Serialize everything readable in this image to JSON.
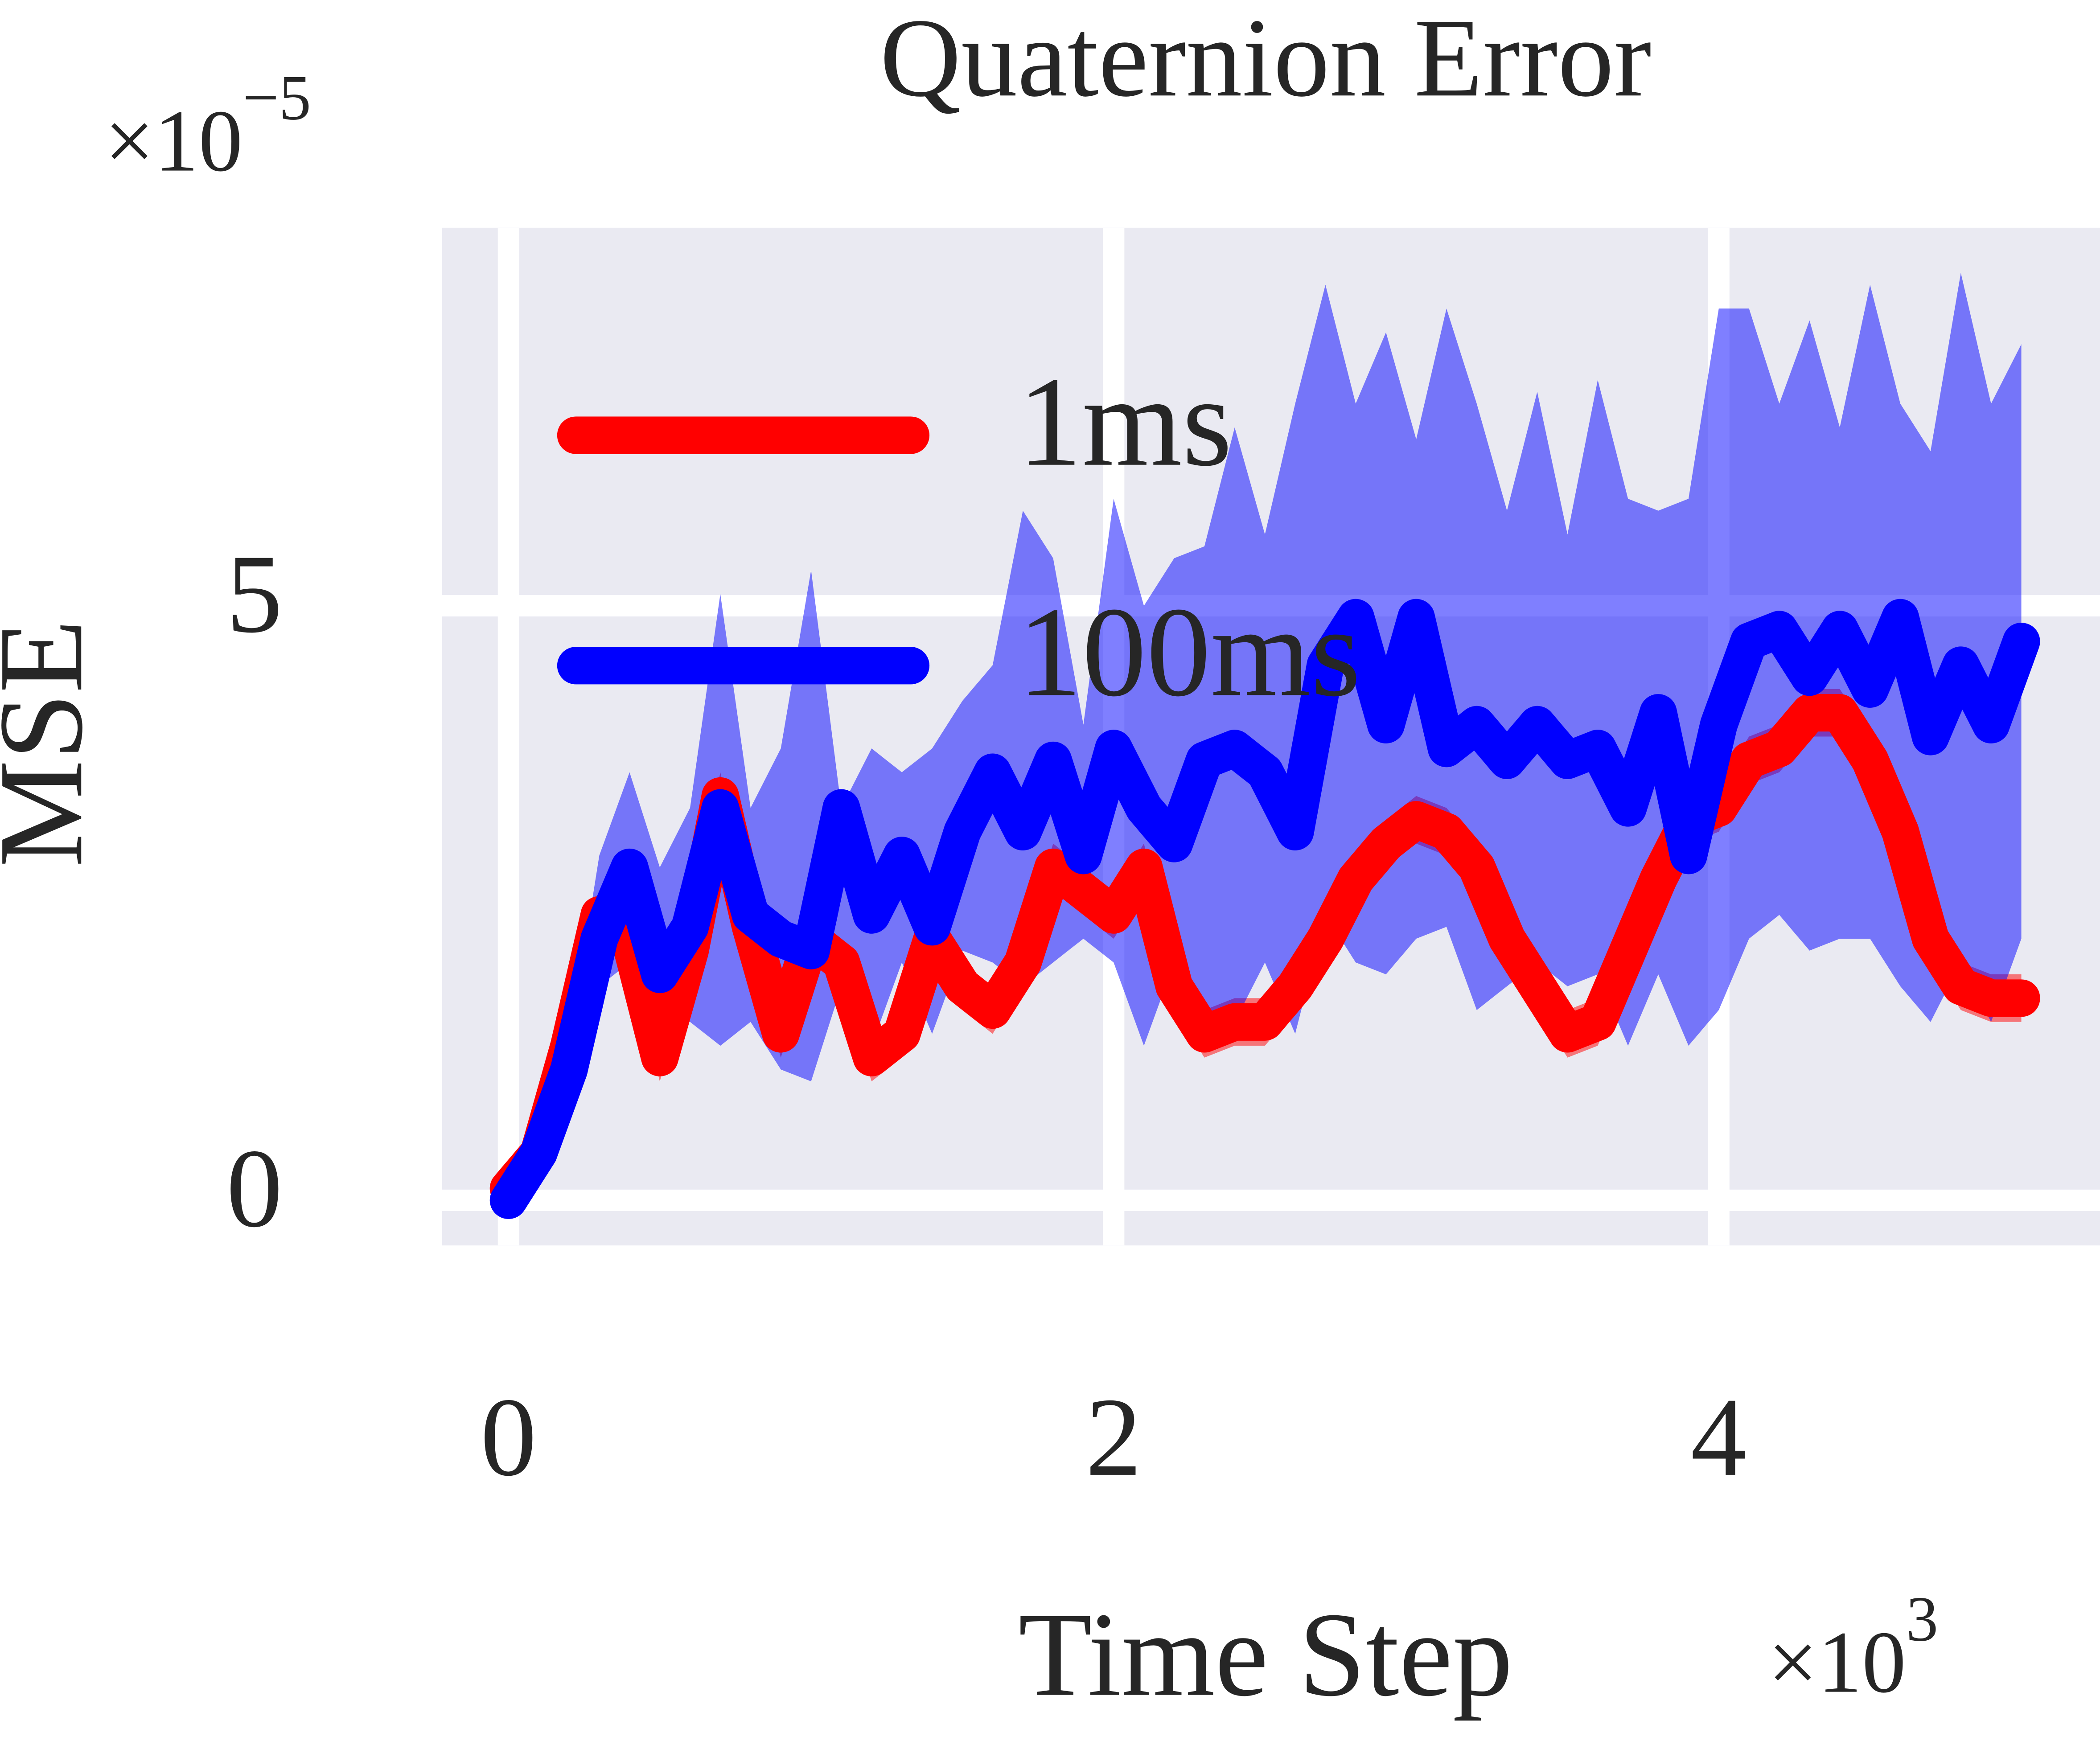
{
  "chart_data": {
    "type": "line",
    "title": "Quaternion Error",
    "xlabel": "Time Step",
    "ylabel": "MSE",
    "x_scale_label": {
      "base": "×10",
      "exponent": "3"
    },
    "y_scale_label": {
      "base": "×10",
      "exponent": "−5"
    },
    "x": [
      0,
      0.1,
      0.2,
      0.3,
      0.4,
      0.5,
      0.6,
      0.7,
      0.8,
      0.9,
      1.0,
      1.1,
      1.2,
      1.3,
      1.4,
      1.5,
      1.6,
      1.7,
      1.8,
      1.9,
      2.0,
      2.1,
      2.2,
      2.3,
      2.4,
      2.5,
      2.6,
      2.7,
      2.8,
      2.9,
      3.0,
      3.1,
      3.2,
      3.3,
      3.4,
      3.5,
      3.6,
      3.7,
      3.8,
      3.9,
      4.0,
      4.1,
      4.2,
      4.3,
      4.4,
      4.5,
      4.6,
      4.7,
      4.8,
      4.9,
      5.0
    ],
    "series": [
      {
        "name": "1ms",
        "color": "#ff0000",
        "values": [
          0.1,
          0.4,
          1.3,
          2.4,
          2.2,
          1.2,
          2.1,
          3.4,
          2.3,
          1.4,
          2.2,
          2.0,
          1.2,
          1.4,
          2.2,
          1.8,
          1.6,
          2.0,
          2.8,
          2.6,
          2.4,
          2.8,
          1.8,
          1.4,
          1.5,
          1.5,
          1.8,
          2.2,
          2.7,
          3.0,
          3.2,
          3.1,
          2.8,
          2.2,
          1.8,
          1.4,
          1.5,
          2.1,
          2.7,
          3.2,
          3.3,
          3.7,
          3.8,
          4.1,
          4.1,
          3.7,
          3.1,
          2.2,
          1.8,
          1.7,
          1.7
        ],
        "lower": [
          0,
          0.2,
          1.1,
          2.2,
          2.0,
          1.0,
          1.9,
          3.2,
          2.1,
          1.2,
          2.0,
          1.8,
          1.0,
          1.2,
          2.0,
          1.6,
          1.4,
          1.8,
          2.6,
          2.4,
          2.2,
          2.6,
          1.6,
          1.2,
          1.3,
          1.3,
          1.6,
          2.0,
          2.5,
          2.8,
          3.0,
          2.9,
          2.6,
          2.0,
          1.6,
          1.2,
          1.3,
          1.9,
          2.5,
          3.0,
          3.1,
          3.5,
          3.6,
          3.9,
          3.9,
          3.5,
          2.9,
          2.0,
          1.6,
          1.5,
          1.5
        ],
        "upper": [
          0.2,
          0.6,
          1.5,
          2.6,
          2.4,
          1.4,
          2.3,
          3.6,
          2.5,
          1.6,
          2.4,
          2.2,
          1.4,
          1.6,
          2.4,
          2.0,
          1.8,
          2.2,
          3.0,
          2.8,
          2.6,
          3.0,
          2.0,
          1.6,
          1.7,
          1.7,
          2.0,
          2.4,
          2.9,
          3.2,
          3.4,
          3.3,
          3.0,
          2.4,
          2.0,
          1.6,
          1.7,
          2.3,
          2.9,
          3.4,
          3.5,
          3.9,
          4.0,
          4.3,
          4.3,
          3.9,
          3.3,
          2.4,
          2.0,
          1.9,
          1.9
        ]
      },
      {
        "name": "100ms",
        "color": "#0000ff",
        "values": [
          0,
          0.4,
          1.1,
          2.2,
          2.8,
          1.9,
          2.3,
          3.3,
          2.4,
          2.2,
          2.1,
          3.3,
          2.4,
          2.9,
          2.3,
          3.1,
          3.6,
          3.1,
          3.7,
          2.9,
          3.8,
          3.3,
          3.0,
          3.7,
          3.8,
          3.6,
          3.1,
          4.5,
          4.9,
          4.0,
          4.9,
          3.8,
          4.0,
          3.7,
          4.0,
          3.7,
          3.8,
          3.3,
          4.1,
          2.9,
          4.0,
          4.7,
          4.8,
          4.4,
          4.8,
          4.3,
          4.9,
          3.9,
          4.5,
          4.0,
          4.7
        ],
        "lower": [
          0,
          0.3,
          1.0,
          1.8,
          2.0,
          1.5,
          1.5,
          1.3,
          1.5,
          1.1,
          1.0,
          1.8,
          1.3,
          2.0,
          1.4,
          2.1,
          2.0,
          1.8,
          2.0,
          2.2,
          2.0,
          1.3,
          2.0,
          1.4,
          1.5,
          2.0,
          1.4,
          2.4,
          2.0,
          1.9,
          2.2,
          2.3,
          1.6,
          1.8,
          2.0,
          1.8,
          1.9,
          1.3,
          1.9,
          1.3,
          1.6,
          2.2,
          2.4,
          2.1,
          2.2,
          2.2,
          1.8,
          1.5,
          2.0,
          1.5,
          2.2
        ],
        "upper": [
          0,
          0.5,
          1.3,
          2.9,
          3.6,
          2.8,
          3.3,
          5.1,
          3.3,
          3.8,
          5.3,
          3.3,
          3.8,
          3.6,
          3.8,
          4.2,
          4.5,
          5.8,
          5.4,
          4.0,
          5.9,
          5.0,
          5.4,
          5.5,
          6.5,
          5.6,
          6.7,
          7.7,
          6.7,
          7.3,
          6.4,
          7.5,
          6.7,
          5.8,
          6.8,
          5.6,
          6.9,
          5.9,
          5.8,
          5.9,
          7.5,
          7.5,
          6.7,
          7.4,
          6.5,
          7.7,
          6.7,
          6.3,
          7.8,
          6.7,
          7.2
        ]
      }
    ],
    "xlim": [
      -0.22,
      5.26
    ],
    "ylim": [
      -0.38,
      8.18
    ],
    "xticks": [
      0,
      2,
      4
    ],
    "yticks": [
      0,
      5
    ],
    "grid": true,
    "legend": "upper left"
  }
}
